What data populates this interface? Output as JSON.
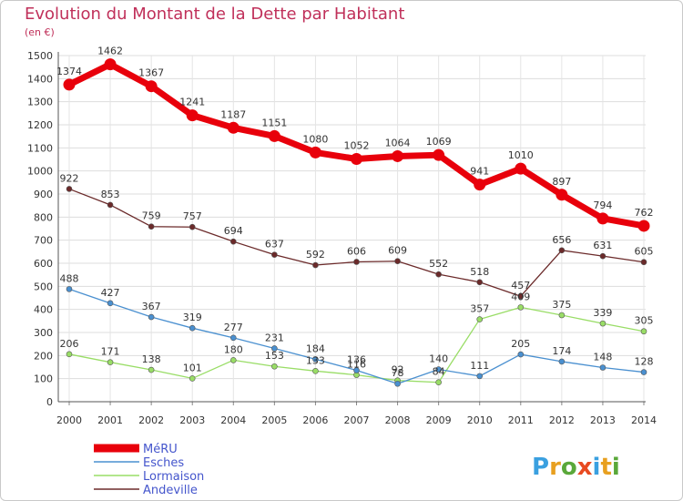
{
  "header": {
    "title": "Evolution du Montant de la Dette par Habitant",
    "unit": "(en €)"
  },
  "logo": {
    "text": "Proxiti",
    "colors": [
      "#3aa0e0",
      "#e8a020",
      "#5aa83a",
      "#e84a20",
      "#3aa0e0",
      "#e8a020",
      "#5aa83a"
    ]
  },
  "chart_data": {
    "type": "line",
    "title": "Evolution du Montant de la Dette par Habitant",
    "ylabel": "(en €)",
    "x": [
      "2000",
      "2001",
      "2002",
      "2003",
      "2004",
      "2005",
      "2006",
      "2007",
      "2008",
      "2009",
      "2010",
      "2011",
      "2012",
      "2013",
      "2014"
    ],
    "ylim": [
      0,
      1500
    ],
    "yticks": [
      0,
      100,
      200,
      300,
      400,
      500,
      600,
      700,
      800,
      900,
      1000,
      1100,
      1200,
      1300,
      1400,
      1500
    ],
    "grid": true,
    "legend": "bottom-left",
    "series": [
      {
        "name": "MéRU",
        "color": "#e8000b",
        "values": [
          1374,
          1462,
          1367,
          1241,
          1187,
          1151,
          1080,
          1052,
          1064,
          1069,
          941,
          1010,
          897,
          794,
          762
        ]
      },
      {
        "name": "Esches",
        "color": "#4a90d0",
        "values": [
          488,
          427,
          367,
          319,
          277,
          231,
          184,
          136,
          78,
          140,
          111,
          205,
          174,
          148,
          128
        ]
      },
      {
        "name": "Lormaison",
        "color": "#99dd66",
        "values": [
          206,
          171,
          138,
          101,
          180,
          153,
          133,
          116,
          92,
          84,
          357,
          409,
          375,
          339,
          305
        ]
      },
      {
        "name": "Andeville",
        "color": "#6b2a2a",
        "values": [
          922,
          853,
          759,
          757,
          694,
          637,
          592,
          606,
          609,
          552,
          518,
          457,
          656,
          631,
          605
        ]
      }
    ]
  }
}
